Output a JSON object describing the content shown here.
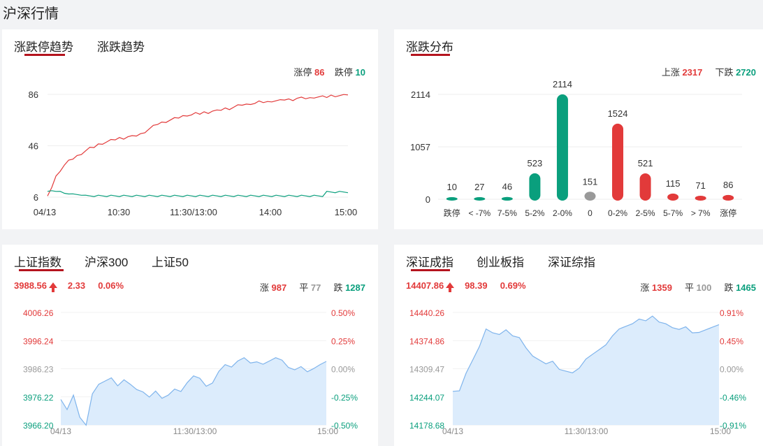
{
  "page_title": "沪深行情",
  "card1": {
    "tabs": [
      "涨跌停趋势",
      "涨跌趋势"
    ],
    "limit_up_label": "涨停",
    "limit_up_value": "86",
    "limit_down_label": "跌停",
    "limit_down_value": "10"
  },
  "card2": {
    "tabs": [
      "涨跌分布"
    ],
    "up_label": "上涨",
    "up_value": "2317",
    "down_label": "下跌",
    "down_value": "2720"
  },
  "card3": {
    "tabs": [
      "上证指数",
      "沪深300",
      "上证50"
    ],
    "price": "3988.56",
    "change": "2.33",
    "change_pct": "0.06%",
    "up_label": "涨",
    "up_value": "987",
    "flat_label": "平",
    "flat_value": "77",
    "down_label": "跌",
    "down_value": "1287"
  },
  "card4": {
    "tabs": [
      "深证成指",
      "创业板指",
      "深证综指"
    ],
    "price": "14407.86",
    "change": "98.39",
    "change_pct": "0.69%",
    "up_label": "涨",
    "up_value": "1359",
    "flat_label": "平",
    "flat_value": "100",
    "down_label": "跌",
    "down_value": "1465"
  },
  "colors": {
    "red": "#e23a3a",
    "green": "#0a9f7d",
    "gray": "#999999",
    "area": "#dcecfc",
    "line": "#7fb4ec",
    "accent": "#b4141e"
  },
  "chart_data": [
    {
      "type": "line",
      "x_ticks": [
        "04/13",
        "10:30",
        "11:30/13:00",
        "14:00",
        "15:00"
      ],
      "y_ticks": [
        6,
        46,
        86
      ],
      "ylim": [
        6,
        86
      ],
      "series": [
        {
          "name": "涨停",
          "color": "#e23a3a",
          "values": [
            6,
            14,
            22,
            27,
            31,
            34,
            36,
            38,
            40,
            42,
            44,
            45,
            47,
            48,
            49,
            50,
            51,
            52,
            52,
            53,
            53,
            54,
            55,
            57,
            59,
            61,
            63,
            64,
            65,
            66,
            67,
            68,
            69,
            70,
            70,
            71,
            71,
            72,
            72,
            73,
            73,
            74,
            75,
            75,
            76,
            77,
            78,
            78,
            79,
            79,
            80,
            80,
            80,
            81,
            81,
            81,
            82,
            82,
            82,
            83,
            83,
            83,
            83,
            84,
            84,
            84,
            84,
            85,
            85,
            85,
            85,
            86
          ]
        },
        {
          "name": "跌停",
          "color": "#0a9f7d",
          "values": [
            10,
            11,
            11,
            10,
            9,
            9,
            8,
            8,
            8,
            7,
            7,
            7,
            7,
            7,
            7,
            7,
            7,
            7,
            7,
            7,
            7,
            7,
            7,
            7,
            7,
            7,
            7,
            7,
            7,
            7,
            7,
            7,
            7,
            7,
            7,
            7,
            7,
            7,
            7,
            7,
            7,
            7,
            7,
            7,
            7,
            7,
            7,
            7,
            7,
            7,
            7,
            7,
            7,
            7,
            7,
            7,
            7,
            7,
            7,
            7,
            7,
            7,
            7,
            7,
            7,
            7,
            10,
            10,
            10,
            10,
            10,
            10
          ]
        }
      ]
    },
    {
      "type": "bar",
      "categories": [
        "跌停",
        "< -7%",
        "7-5%",
        "5-2%",
        "2-0%",
        "0",
        "0-2%",
        "2-5%",
        "5-7%",
        "> 7%",
        "涨停"
      ],
      "values": [
        10,
        27,
        46,
        523,
        2114,
        151,
        1524,
        521,
        115,
        71,
        86
      ],
      "colors": [
        "#0a9f7d",
        "#0a9f7d",
        "#0a9f7d",
        "#0a9f7d",
        "#0a9f7d",
        "#999999",
        "#e23a3a",
        "#e23a3a",
        "#e23a3a",
        "#e23a3a",
        "#e23a3a"
      ],
      "y_ticks": [
        0,
        1057,
        2114
      ],
      "ylim": [
        0,
        2114
      ]
    },
    {
      "type": "area",
      "x_ticks": [
        "04/13",
        "11:30/13:00",
        "15:00"
      ],
      "y_left_ticks": [
        "4006.26",
        "3996.24",
        "3986.23",
        "3976.22",
        "3966.20"
      ],
      "y_right_ticks": [
        "0.50%",
        "0.25%",
        "0.00%",
        "-0.25%",
        "-0.50%"
      ],
      "ylim": [
        3966.2,
        4006.26
      ],
      "values": [
        3975,
        3972,
        3977,
        3969,
        3966,
        3977,
        3981,
        3982,
        3983,
        3980,
        3982,
        3981,
        3979,
        3978,
        3976,
        3978,
        3976,
        3977,
        3979,
        3978,
        3981,
        3984,
        3983,
        3980,
        3981,
        3985,
        3988,
        3987,
        3989,
        3990,
        3988,
        3989,
        3988,
        3989,
        3990,
        3989,
        3987,
        3986,
        3987,
        3985,
        3986,
        3988,
        3989
      ]
    },
    {
      "type": "area",
      "x_ticks": [
        "04/13",
        "11:30/13:00",
        "15:00"
      ],
      "y_left_ticks": [
        "14440.26",
        "14374.86",
        "14309.47",
        "14244.07",
        "14178.68"
      ],
      "y_right_ticks": [
        "0.91%",
        "0.45%",
        "0.00%",
        "-0.46%",
        "-0.91%"
      ],
      "ylim": [
        14178.68,
        14440.26
      ],
      "values": [
        14255,
        14260,
        14300,
        14330,
        14360,
        14400,
        14395,
        14390,
        14400,
        14385,
        14380,
        14360,
        14340,
        14330,
        14320,
        14325,
        14310,
        14305,
        14300,
        14310,
        14330,
        14345,
        14355,
        14365,
        14385,
        14400,
        14410,
        14415,
        14425,
        14420,
        14430,
        14420,
        14415,
        14405,
        14400,
        14405,
        14395,
        14395,
        14400,
        14405,
        14410
      ]
    }
  ]
}
